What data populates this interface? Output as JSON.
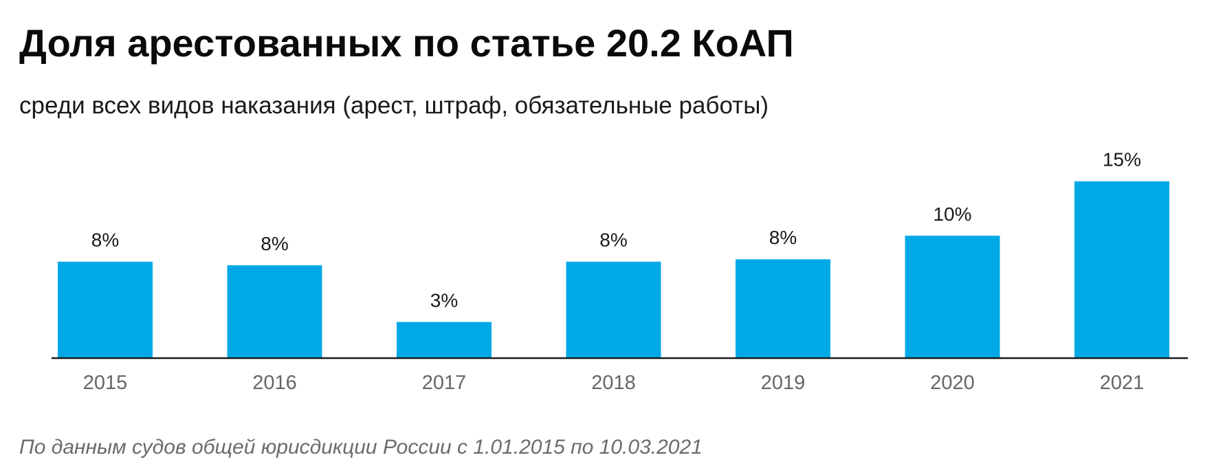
{
  "chart_data": {
    "type": "bar",
    "title": "Доля арестованных по статье 20.2 КоАП",
    "subtitle": "среди всех видов наказания (арест, штраф, обязательные работы)",
    "categories": [
      "2015",
      "2016",
      "2017",
      "2018",
      "2019",
      "2020",
      "2021"
    ],
    "values": [
      8.1,
      7.8,
      3.0,
      8.1,
      8.3,
      10.3,
      14.9
    ],
    "data_labels": [
      "8%",
      "8%",
      "3%",
      "8%",
      "8%",
      "10%",
      "15%"
    ],
    "ylim": [
      0,
      15
    ],
    "grid": false,
    "legend": "none",
    "bar_color": "#00a9e6",
    "axis_color": "#1a1a1a",
    "tick_label_color": "#666666",
    "data_label_color": "#1a1a1a"
  },
  "source_note": "По данным судов общей юрисдикции России с 1.01.2015 по 10.03.2021"
}
